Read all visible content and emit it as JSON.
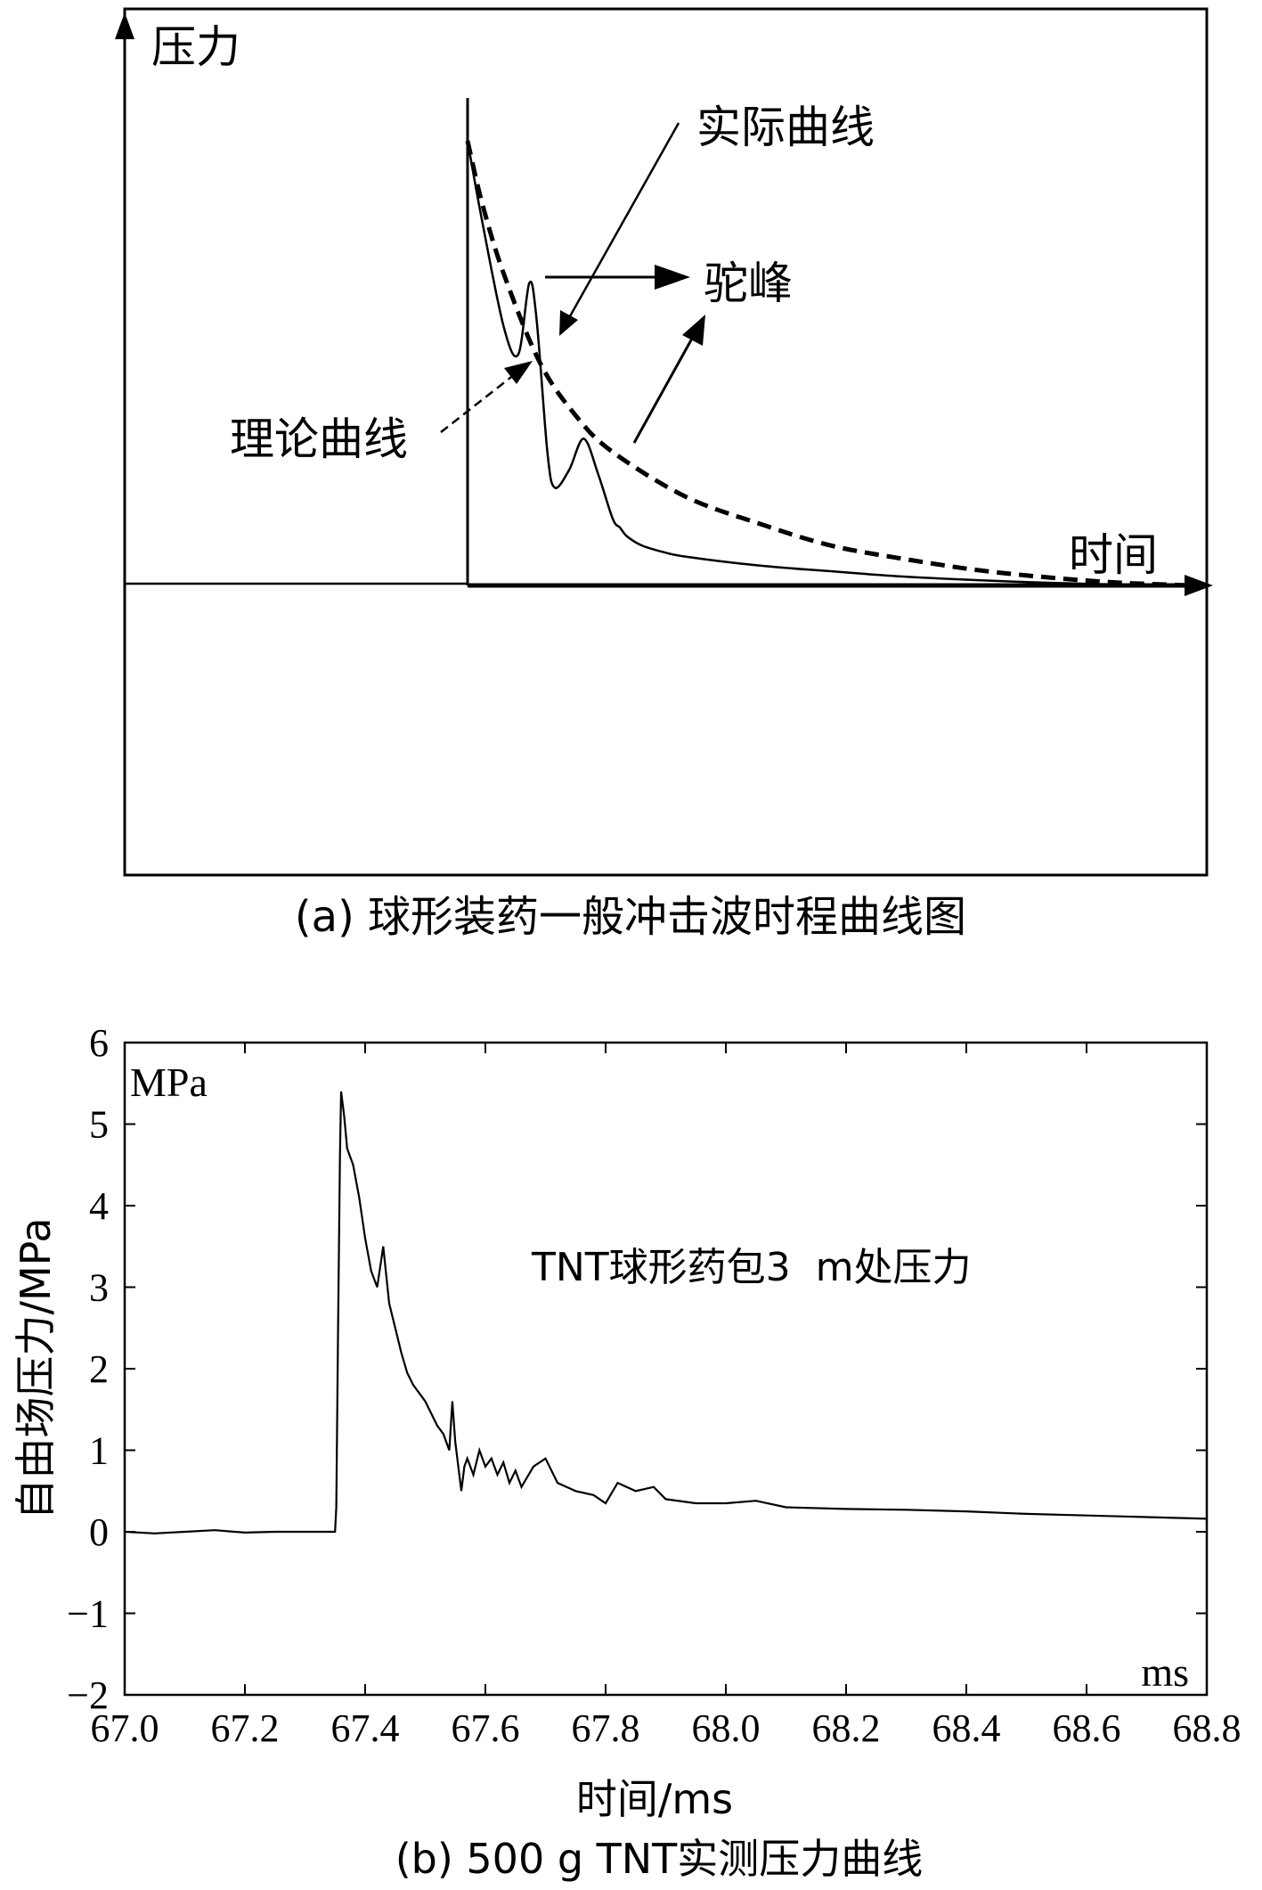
{
  "chart_data": [
    {
      "type": "line",
      "panel": "a",
      "caption": "(a) 球形装药一般冲击波时程曲线图",
      "ylabel": "压力",
      "xlabel": "时间",
      "annotations": {
        "actual_curve": "实际曲线",
        "camel_peak": "驼峰",
        "theoretical_curve": "理论曲线"
      },
      "series": [
        {
          "name": "理论曲线",
          "style": "dashed",
          "x": [
            0,
            0.02,
            0.05,
            0.1,
            0.15,
            0.2,
            0.3,
            0.4,
            0.5,
            0.6,
            0.7,
            0.8,
            0.9,
            1.0
          ],
          "y": [
            1.0,
            0.86,
            0.7,
            0.5,
            0.38,
            0.3,
            0.2,
            0.14,
            0.09,
            0.06,
            0.035,
            0.018,
            0.006,
            0
          ]
        },
        {
          "name": "实际曲线",
          "style": "solid",
          "x": [
            0,
            0.02,
            0.05,
            0.07,
            0.085,
            0.095,
            0.11,
            0.12,
            0.14,
            0.16,
            0.18,
            0.2,
            0.21,
            0.22,
            0.24,
            0.27,
            0.3,
            0.4,
            0.5,
            0.6,
            0.7,
            0.8,
            0.9,
            1.0
          ],
          "y": [
            1.0,
            0.82,
            0.58,
            0.52,
            0.68,
            0.6,
            0.3,
            0.22,
            0.26,
            0.33,
            0.25,
            0.15,
            0.13,
            0.11,
            0.09,
            0.075,
            0.065,
            0.045,
            0.032,
            0.02,
            0.012,
            0.006,
            0.002,
            0
          ]
        }
      ]
    },
    {
      "type": "line",
      "panel": "b",
      "caption": "(b) 500 g TNT实测压力曲线",
      "annotation": "TNT球形药包3  m处压力",
      "unit_corner_top": "MPa",
      "unit_corner_bottom": "ms",
      "xlabel": "时间/ms",
      "ylabel": "自由场压力/MPa",
      "xlim": [
        67.0,
        68.8
      ],
      "ylim": [
        -2,
        6
      ],
      "xticks": [
        "67.0",
        "67.2",
        "67.4",
        "67.6",
        "67.8",
        "68.0",
        "68.2",
        "68.4",
        "68.6",
        "68.8"
      ],
      "yticks": [
        "6",
        "5",
        "4",
        "3",
        "2",
        "1",
        "0",
        "−1",
        "−2"
      ],
      "series": [
        {
          "name": "",
          "x": [
            67.0,
            67.05,
            67.1,
            67.15,
            67.2,
            67.25,
            67.3,
            67.35,
            67.352,
            67.355,
            67.358,
            67.36,
            67.365,
            67.37,
            67.38,
            67.39,
            67.4,
            67.41,
            67.42,
            67.43,
            67.44,
            67.45,
            67.46,
            67.47,
            67.48,
            67.5,
            67.52,
            67.53,
            67.54,
            67.545,
            67.55,
            67.56,
            67.565,
            67.57,
            67.58,
            67.59,
            67.6,
            67.61,
            67.62,
            67.63,
            67.64,
            67.65,
            67.66,
            67.68,
            67.7,
            67.72,
            67.75,
            67.78,
            67.8,
            67.82,
            67.85,
            67.88,
            67.9,
            67.95,
            68.0,
            68.05,
            68.1,
            68.2,
            68.3,
            68.4,
            68.5,
            68.6,
            68.7,
            68.8
          ],
          "y": [
            0.0,
            -0.02,
            0.0,
            0.02,
            -0.01,
            0.0,
            0.0,
            0.0,
            0.3,
            2.5,
            4.6,
            5.4,
            5.1,
            4.7,
            4.5,
            4.1,
            3.6,
            3.2,
            3.0,
            3.5,
            2.8,
            2.5,
            2.2,
            1.95,
            1.8,
            1.6,
            1.3,
            1.2,
            1.0,
            1.6,
            1.1,
            0.5,
            0.8,
            0.9,
            0.7,
            1.0,
            0.8,
            0.9,
            0.7,
            0.85,
            0.6,
            0.75,
            0.55,
            0.8,
            0.9,
            0.6,
            0.5,
            0.45,
            0.35,
            0.6,
            0.5,
            0.55,
            0.4,
            0.35,
            0.35,
            0.38,
            0.3,
            0.28,
            0.27,
            0.25,
            0.22,
            0.2,
            0.18,
            0.16
          ]
        }
      ]
    }
  ]
}
